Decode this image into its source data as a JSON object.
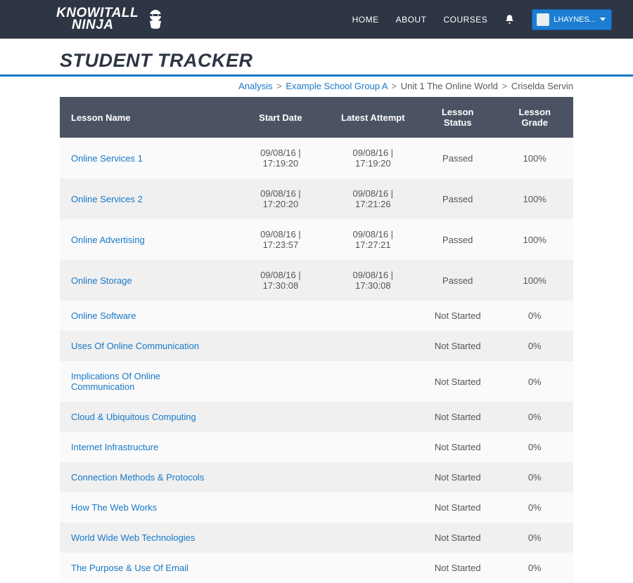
{
  "brand": {
    "line1": "KNOWITALL",
    "line2": "NINJA"
  },
  "nav": {
    "home": "HOME",
    "about": "ABOUT",
    "courses": "COURSES"
  },
  "user": {
    "name": "LHAYNES..."
  },
  "page_title": "STUDENT TRACKER",
  "breadcrumb": {
    "analysis": "Analysis",
    "school": "Example School Group A",
    "unit": "Unit 1 The Online World",
    "student": "Criselda Servin"
  },
  "columns": {
    "name": "Lesson Name",
    "start": "Start Date",
    "latest": "Latest Attempt",
    "status": "Lesson Status",
    "grade": "Lesson Grade"
  },
  "rows": [
    {
      "name": "Online Services 1",
      "start": "09/08/16 | 17:19:20",
      "latest": "09/08/16 | 17:19:20",
      "status": "Passed",
      "grade": "100%"
    },
    {
      "name": "Online Services 2",
      "start": "09/08/16 | 17:20:20",
      "latest": "09/08/16 | 17:21:26",
      "status": "Passed",
      "grade": "100%"
    },
    {
      "name": "Online Advertising",
      "start": "09/08/16 | 17:23:57",
      "latest": "09/08/16 | 17:27:21",
      "status": "Passed",
      "grade": "100%"
    },
    {
      "name": "Online Storage",
      "start": "09/08/16 | 17:30:08",
      "latest": "09/08/16 | 17:30:08",
      "status": "Passed",
      "grade": "100%"
    },
    {
      "name": "Online Software",
      "start": "",
      "latest": "",
      "status": "Not Started",
      "grade": "0%"
    },
    {
      "name": "Uses Of Online Communication",
      "start": "",
      "latest": "",
      "status": "Not Started",
      "grade": "0%"
    },
    {
      "name": "Implications Of Online Communication",
      "start": "",
      "latest": "",
      "status": "Not Started",
      "grade": "0%"
    },
    {
      "name": "Cloud & Ubiquitous Computing",
      "start": "",
      "latest": "",
      "status": "Not Started",
      "grade": "0%"
    },
    {
      "name": "Internet Infrastructure",
      "start": "",
      "latest": "",
      "status": "Not Started",
      "grade": "0%"
    },
    {
      "name": "Connection Methods & Protocols",
      "start": "",
      "latest": "",
      "status": "Not Started",
      "grade": "0%"
    },
    {
      "name": "How The Web Works",
      "start": "",
      "latest": "",
      "status": "Not Started",
      "grade": "0%"
    },
    {
      "name": "World Wide Web Technologies",
      "start": "",
      "latest": "",
      "status": "Not Started",
      "grade": "0%"
    },
    {
      "name": "The Purpose & Use Of Email",
      "start": "",
      "latest": "",
      "status": "Not Started",
      "grade": "0%"
    }
  ],
  "colors": {
    "header_bg": "#2e3544",
    "accent": "#1778c8",
    "user_btn": "#1c7dd2",
    "table_head": "#4b5363",
    "row_odd": "#fafafa",
    "row_even": "#f0f0f0",
    "link": "#1778c8",
    "text": "#333333"
  }
}
